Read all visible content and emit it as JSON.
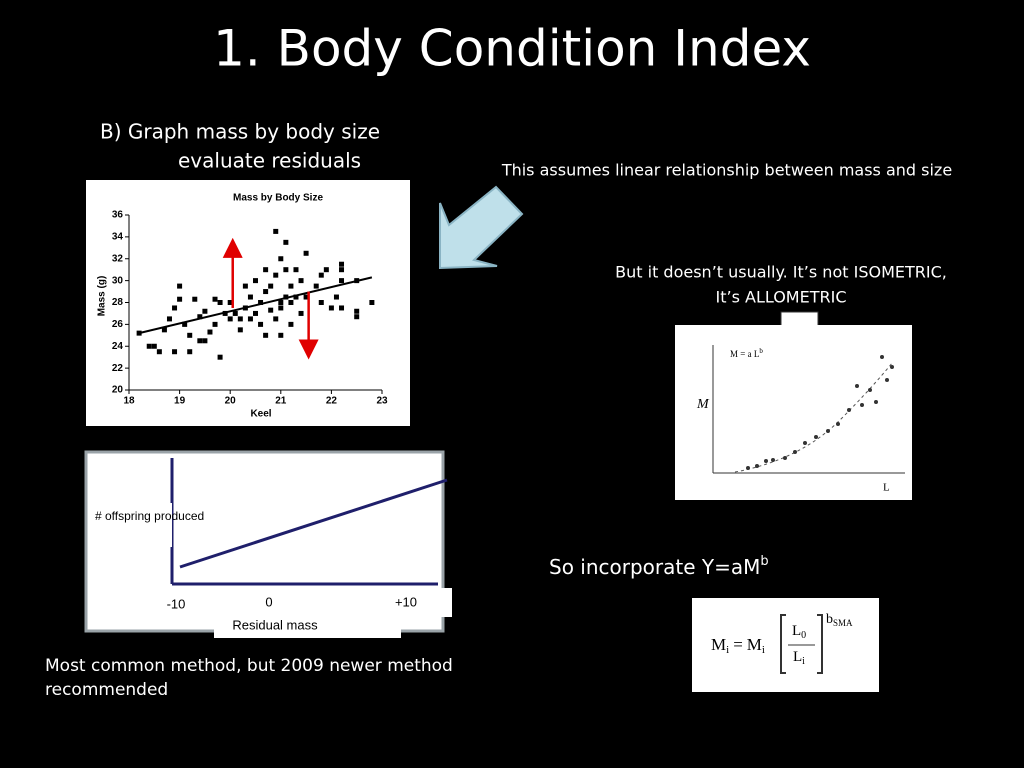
{
  "title": "1.  Body Condition Index",
  "heading": [
    "B) Graph mass by body size",
    "evaluate residuals"
  ],
  "notes": {
    "linear": "This assumes linear relationship between mass and size",
    "allometric": [
      "But it doesn’t usually.  It’s not ISOMETRIC,",
      "It’s ALLOMETRIC"
    ],
    "incorporate": {
      "text": "So incorporate Y=aM",
      "superscript": "b"
    },
    "method": [
      "Most common method, but 2009 newer method",
      "recommended"
    ]
  },
  "chart_data": {
    "type": "scatter",
    "title": "Mass by Body Size",
    "x_label": "Keel",
    "y_label": "Mass (g)",
    "xlim": [
      18,
      23
    ],
    "ylim": [
      20,
      36
    ],
    "xticks": [
      18,
      19,
      20,
      21,
      22,
      23
    ],
    "yticks": [
      20,
      22,
      24,
      26,
      28,
      30,
      32,
      34,
      36
    ],
    "series": [
      {
        "color": "#000000",
        "x": [
          18.2,
          18.4,
          18.5,
          18.6,
          18.7,
          18.8,
          18.9,
          18.9,
          19,
          19,
          19.1,
          19.2,
          19.2,
          19.3,
          19.4,
          19.4,
          19.5,
          19.5,
          19.6,
          19.7,
          19.7,
          19.8,
          19.8,
          19.9,
          20,
          20,
          20.05,
          20.1,
          20.2,
          20.2,
          20.3,
          20.3,
          20.4,
          20.4,
          20.5,
          20.5,
          20.6,
          20.6,
          20.7,
          20.7,
          20.7,
          20.8,
          20.8,
          20.9,
          20.9,
          20.9,
          21,
          21,
          21,
          21,
          21.1,
          21.1,
          21.1,
          21.2,
          21.2,
          21.2,
          21.3,
          21.3,
          21.4,
          21.4,
          21.5,
          21.5,
          21.55,
          21.7,
          21.8,
          21.8,
          21.9,
          22,
          22.1,
          22.2,
          22.2,
          22.5,
          22.2,
          22.5,
          22.5,
          22.8,
          22.2
        ],
        "values": [
          25.2,
          24,
          24,
          23.5,
          25.5,
          26.5,
          27.5,
          23.5,
          28.3,
          29.5,
          26,
          25,
          23.5,
          28.3,
          24.5,
          26.7,
          24.5,
          27.2,
          25.3,
          26,
          28.3,
          23,
          28,
          27,
          26.5,
          28,
          33,
          27,
          26.5,
          25.5,
          27.5,
          29.5,
          28.5,
          26.5,
          30,
          27,
          28,
          26,
          31,
          29,
          25,
          27.3,
          29.5,
          30.5,
          26.5,
          34.5,
          28,
          32,
          27.5,
          25,
          33.5,
          28.5,
          31,
          28,
          26,
          29.5,
          31,
          28.5,
          30,
          27,
          28.5,
          32.5,
          23.7,
          29.5,
          30.5,
          28,
          31,
          27.5,
          28.5,
          30,
          27.5,
          30,
          31.5,
          27.2,
          26.7,
          28,
          31
        ]
      }
    ],
    "trend": {
      "color": "#000000",
      "x": [
        18.2,
        22.8
      ],
      "y": [
        25.2,
        30.3
      ]
    },
    "arrows": [
      {
        "color": "#e00000",
        "x": 20.05,
        "y_from": 27.5,
        "y_to": 33
      },
      {
        "color": "#e00000",
        "x": 21.55,
        "y_from": 29,
        "y_to": 23.7
      }
    ]
  },
  "residual_graph": {
    "y_label": "# offspring produced",
    "x_label": "Residual mass",
    "x_ticks": [
      "-10",
      "0",
      "+10"
    ]
  },
  "allometric_figure": {
    "y_label": "M",
    "x_label": "L",
    "equation": "M = a L",
    "equation_sup": "b"
  },
  "formula": {
    "lhs": "M",
    "lhs_sub": "i",
    "eq": "=",
    "rhs": "M",
    "rhs_sub": "i",
    "numerator": "L",
    "numerator_sub": "0",
    "denominator": "L",
    "denominator_sub": "i",
    "exponent": "b",
    "exponent_sub": "SMA"
  }
}
